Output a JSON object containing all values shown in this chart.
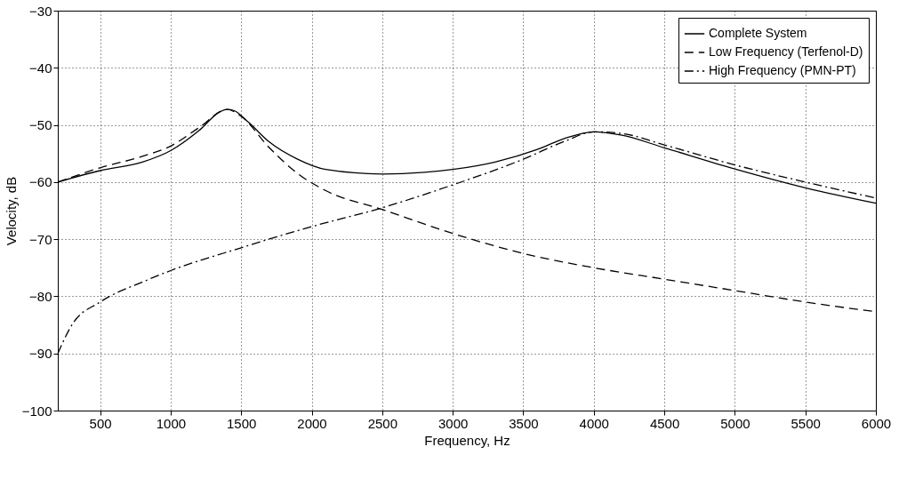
{
  "chart_data": {
    "type": "line",
    "xlabel": "Frequency, Hz",
    "ylabel": "Velocity, dB",
    "xlim": [
      200,
      6000
    ],
    "xticks": [
      500,
      1000,
      1500,
      2000,
      2500,
      3000,
      3500,
      4000,
      4500,
      5000,
      5500,
      6000
    ],
    "ylim": [
      -100,
      -30
    ],
    "yticks": [
      -100,
      -90,
      -80,
      -70,
      -60,
      -50,
      -40,
      -30
    ],
    "grid": true,
    "legend": "top right",
    "marker": "none",
    "series": [
      {
        "name": "Complete System",
        "color": "#000000",
        "line_style": "solid",
        "x": [
          200,
          500,
          800,
          1000,
          1200,
          1350,
          1400,
          1450,
          1550,
          1700,
          1900,
          2100,
          2500,
          2800,
          3000,
          3300,
          3600,
          3800,
          4000,
          4200,
          4500,
          5000,
          5500,
          6000
        ],
        "values": [
          -60,
          -58,
          -56.5,
          -54.5,
          -51,
          -47.7,
          -47.3,
          -47.5,
          -49.5,
          -53,
          -56,
          -57.8,
          -58.6,
          -58.3,
          -57.8,
          -56.5,
          -54.3,
          -52.3,
          -51.2,
          -51.8,
          -54,
          -57.7,
          -61,
          -63.7
        ]
      },
      {
        "name": "Low Frequency (Terfenol-D)",
        "color": "#000000",
        "line_style": "dashed",
        "x": [
          200,
          500,
          800,
          1000,
          1200,
          1400,
          1500,
          1700,
          1900,
          2100,
          2500,
          3000,
          3500,
          4000,
          4500,
          5000,
          5500,
          6000
        ],
        "values": [
          -60,
          -57.5,
          -55.5,
          -53.7,
          -50.5,
          -47.3,
          -48.5,
          -54,
          -58.5,
          -61.5,
          -64.8,
          -69,
          -72.5,
          -75,
          -77,
          -79,
          -81,
          -82.7
        ]
      },
      {
        "name": "High Frequency (PMN-PT)",
        "color": "#000000",
        "line_style": "dashdot",
        "x": [
          200,
          300,
          500,
          800,
          1000,
          1500,
          2000,
          2500,
          3000,
          3500,
          3800,
          4000,
          4200,
          4500,
          5000,
          5500,
          6000
        ],
        "values": [
          -90,
          -85,
          -81,
          -77.5,
          -75.5,
          -71.5,
          -67.8,
          -64.5,
          -60.5,
          -56,
          -52.8,
          -51.2,
          -51.5,
          -53.5,
          -57,
          -60,
          -62.8
        ]
      }
    ]
  }
}
